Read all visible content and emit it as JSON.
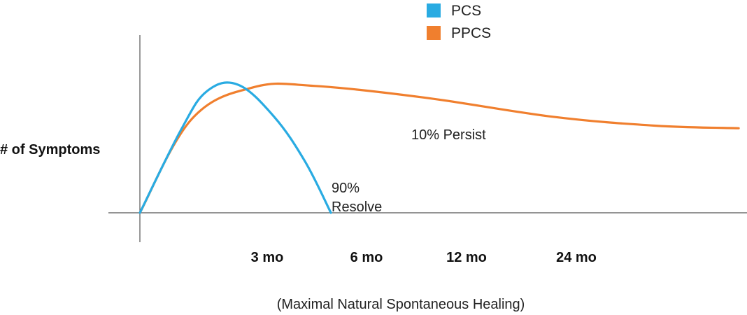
{
  "chart_data": {
    "type": "line",
    "title": "",
    "ylabel": "# of Symptoms",
    "xlabel": "(Maximal Natural Spontaneous Healing)",
    "x_tick_labels": [
      "3 mo",
      "6 mo",
      "12 mo",
      "24 mo"
    ],
    "legend": {
      "placement": "top-center",
      "entries": [
        "PCS",
        "PPCS"
      ]
    },
    "grid": false,
    "y_scale": "unlabeled",
    "series": [
      {
        "name": "PCS",
        "color": "#29abe2",
        "points": [
          {
            "x": 0,
            "y": 0
          },
          {
            "x": 0.8,
            "y": 0.65
          },
          {
            "x": 1.3,
            "y": 0.95
          },
          {
            "x": 1.9,
            "y": 1.0
          },
          {
            "x": 2.6,
            "y": 0.75
          },
          {
            "x": 3.2,
            "y": 0.4
          },
          {
            "x": 3.7,
            "y": 0.0
          }
        ]
      },
      {
        "name": "PPCS",
        "color": "#f07f2e",
        "points": [
          {
            "x": 0,
            "y": 0
          },
          {
            "x": 1.0,
            "y": 0.73
          },
          {
            "x": 2.2,
            "y": 0.98
          },
          {
            "x": 3.4,
            "y": 0.99
          },
          {
            "x": 5.5,
            "y": 0.9
          },
          {
            "x": 8.0,
            "y": 0.75
          },
          {
            "x": 10.0,
            "y": 0.68
          },
          {
            "x": 11.6,
            "y": 0.66
          }
        ]
      }
    ],
    "annotations": [
      {
        "text": "10% Persist",
        "series": "PPCS"
      },
      {
        "text": "90%",
        "series": "PCS"
      },
      {
        "text": "Resolve",
        "series": "PCS"
      }
    ]
  }
}
